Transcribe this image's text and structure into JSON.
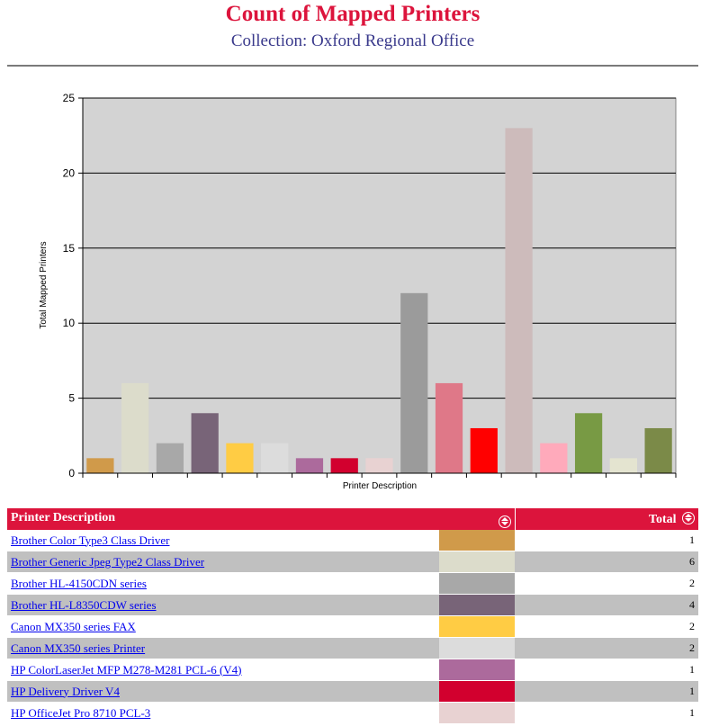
{
  "header": {
    "title": "Count of Mapped Printers",
    "subtitle": "Collection: Oxford Regional Office"
  },
  "chart_data": {
    "type": "bar",
    "xlabel": "Printer Description",
    "ylabel": "Total Mapped Printers",
    "ylim": [
      0,
      25
    ],
    "yticks": [
      0,
      5,
      10,
      15,
      20,
      25
    ],
    "grid": true,
    "background_color": "#d3d3d3",
    "categories": [
      "Brother Color Type3 Class Driver",
      "Brother Generic Jpeg Type2 Class Driver",
      "Brother HL-4150CDN series",
      "Brother HL-L8350CDW series",
      "Canon MX350 series FAX",
      "Canon MX350 series Printer",
      "HP ColorLaserJet MFP M278-M281 PCL-6 (V4)",
      "HP Delivery Driver V4",
      "HP OfficeJet Pro 8710 PCL-3",
      "",
      "",
      "",
      "",
      "",
      "",
      "",
      ""
    ],
    "values": [
      1,
      6,
      2,
      4,
      2,
      2,
      1,
      1,
      1,
      12,
      6,
      3,
      23,
      2,
      4,
      1,
      3
    ],
    "colors": [
      "#d09a4a",
      "#dcdccb",
      "#a8a8a8",
      "#786478",
      "#ffcc44",
      "#dcdcdc",
      "#ac6a9c",
      "#d2002e",
      "#e8d2d2",
      "#9b9b9b",
      "#df7888",
      "#ff0000",
      "#cdbbbb",
      "#ffaabb",
      "#789a44",
      "#e4e4d0",
      "#7b8a48"
    ]
  },
  "table": {
    "headers": {
      "description": "Printer Description",
      "total": "Total"
    },
    "rows": [
      {
        "description": "Brother Color Type3 Class Driver",
        "color": "#d09a4a",
        "total": "1"
      },
      {
        "description": "Brother Generic Jpeg Type2 Class Driver",
        "color": "#dcdccb",
        "total": "6"
      },
      {
        "description": "Brother HL-4150CDN series",
        "color": "#a8a8a8",
        "total": "2"
      },
      {
        "description": "Brother HL-L8350CDW series",
        "color": "#786478",
        "total": "4"
      },
      {
        "description": "Canon MX350 series FAX",
        "color": "#ffcc44",
        "total": "2"
      },
      {
        "description": "Canon MX350 series Printer",
        "color": "#dcdcdc",
        "total": "2"
      },
      {
        "description": "HP ColorLaserJet MFP M278-M281 PCL-6 (V4)",
        "color": "#ac6a9c",
        "total": "1"
      },
      {
        "description": "HP Delivery Driver V4",
        "color": "#d2002e",
        "total": "1"
      },
      {
        "description": "HP OfficeJet Pro 8710 PCL-3",
        "color": "#e8d2d2",
        "total": "1"
      }
    ]
  }
}
